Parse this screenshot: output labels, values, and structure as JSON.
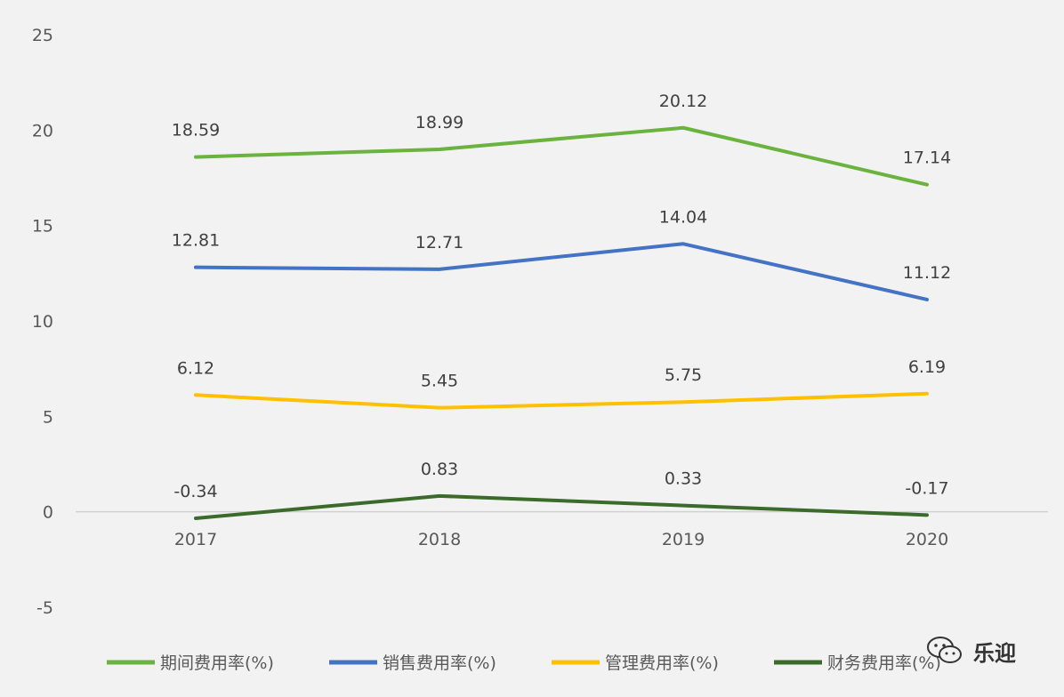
{
  "chart_data": {
    "type": "line",
    "categories": [
      "2017",
      "2018",
      "2019",
      "2020"
    ],
    "ylim": [
      -5,
      25
    ],
    "yticks": [
      "-5",
      "0",
      "5",
      "10",
      "15",
      "20",
      "25"
    ],
    "grid": false,
    "legend_position": "bottom",
    "series": [
      {
        "name": "期间费用率(%)",
        "values": [
          18.59,
          18.99,
          20.12,
          17.14
        ],
        "labels": [
          "18.59",
          "18.99",
          "20.12",
          "17.14"
        ],
        "color": "#6ab33e"
      },
      {
        "name": "销售费用率(%)",
        "values": [
          12.81,
          12.71,
          14.04,
          11.12
        ],
        "labels": [
          "12.81",
          "12.71",
          "14.04",
          "11.12"
        ],
        "color": "#4472c4"
      },
      {
        "name": "管理费用率(%)",
        "values": [
          6.12,
          5.45,
          5.75,
          6.19
        ],
        "labels": [
          "6.12",
          "5.45",
          "5.75",
          "6.19"
        ],
        "color": "#ffc000"
      },
      {
        "name": "财务费用率(%)",
        "values": [
          -0.34,
          0.83,
          0.33,
          -0.17
        ],
        "labels": [
          "-0.34",
          "0.83",
          "0.33",
          "-0.17"
        ],
        "color": "#3a6b2a"
      }
    ]
  },
  "watermark": {
    "text": "乐迎",
    "icon": "wechat-icon"
  }
}
